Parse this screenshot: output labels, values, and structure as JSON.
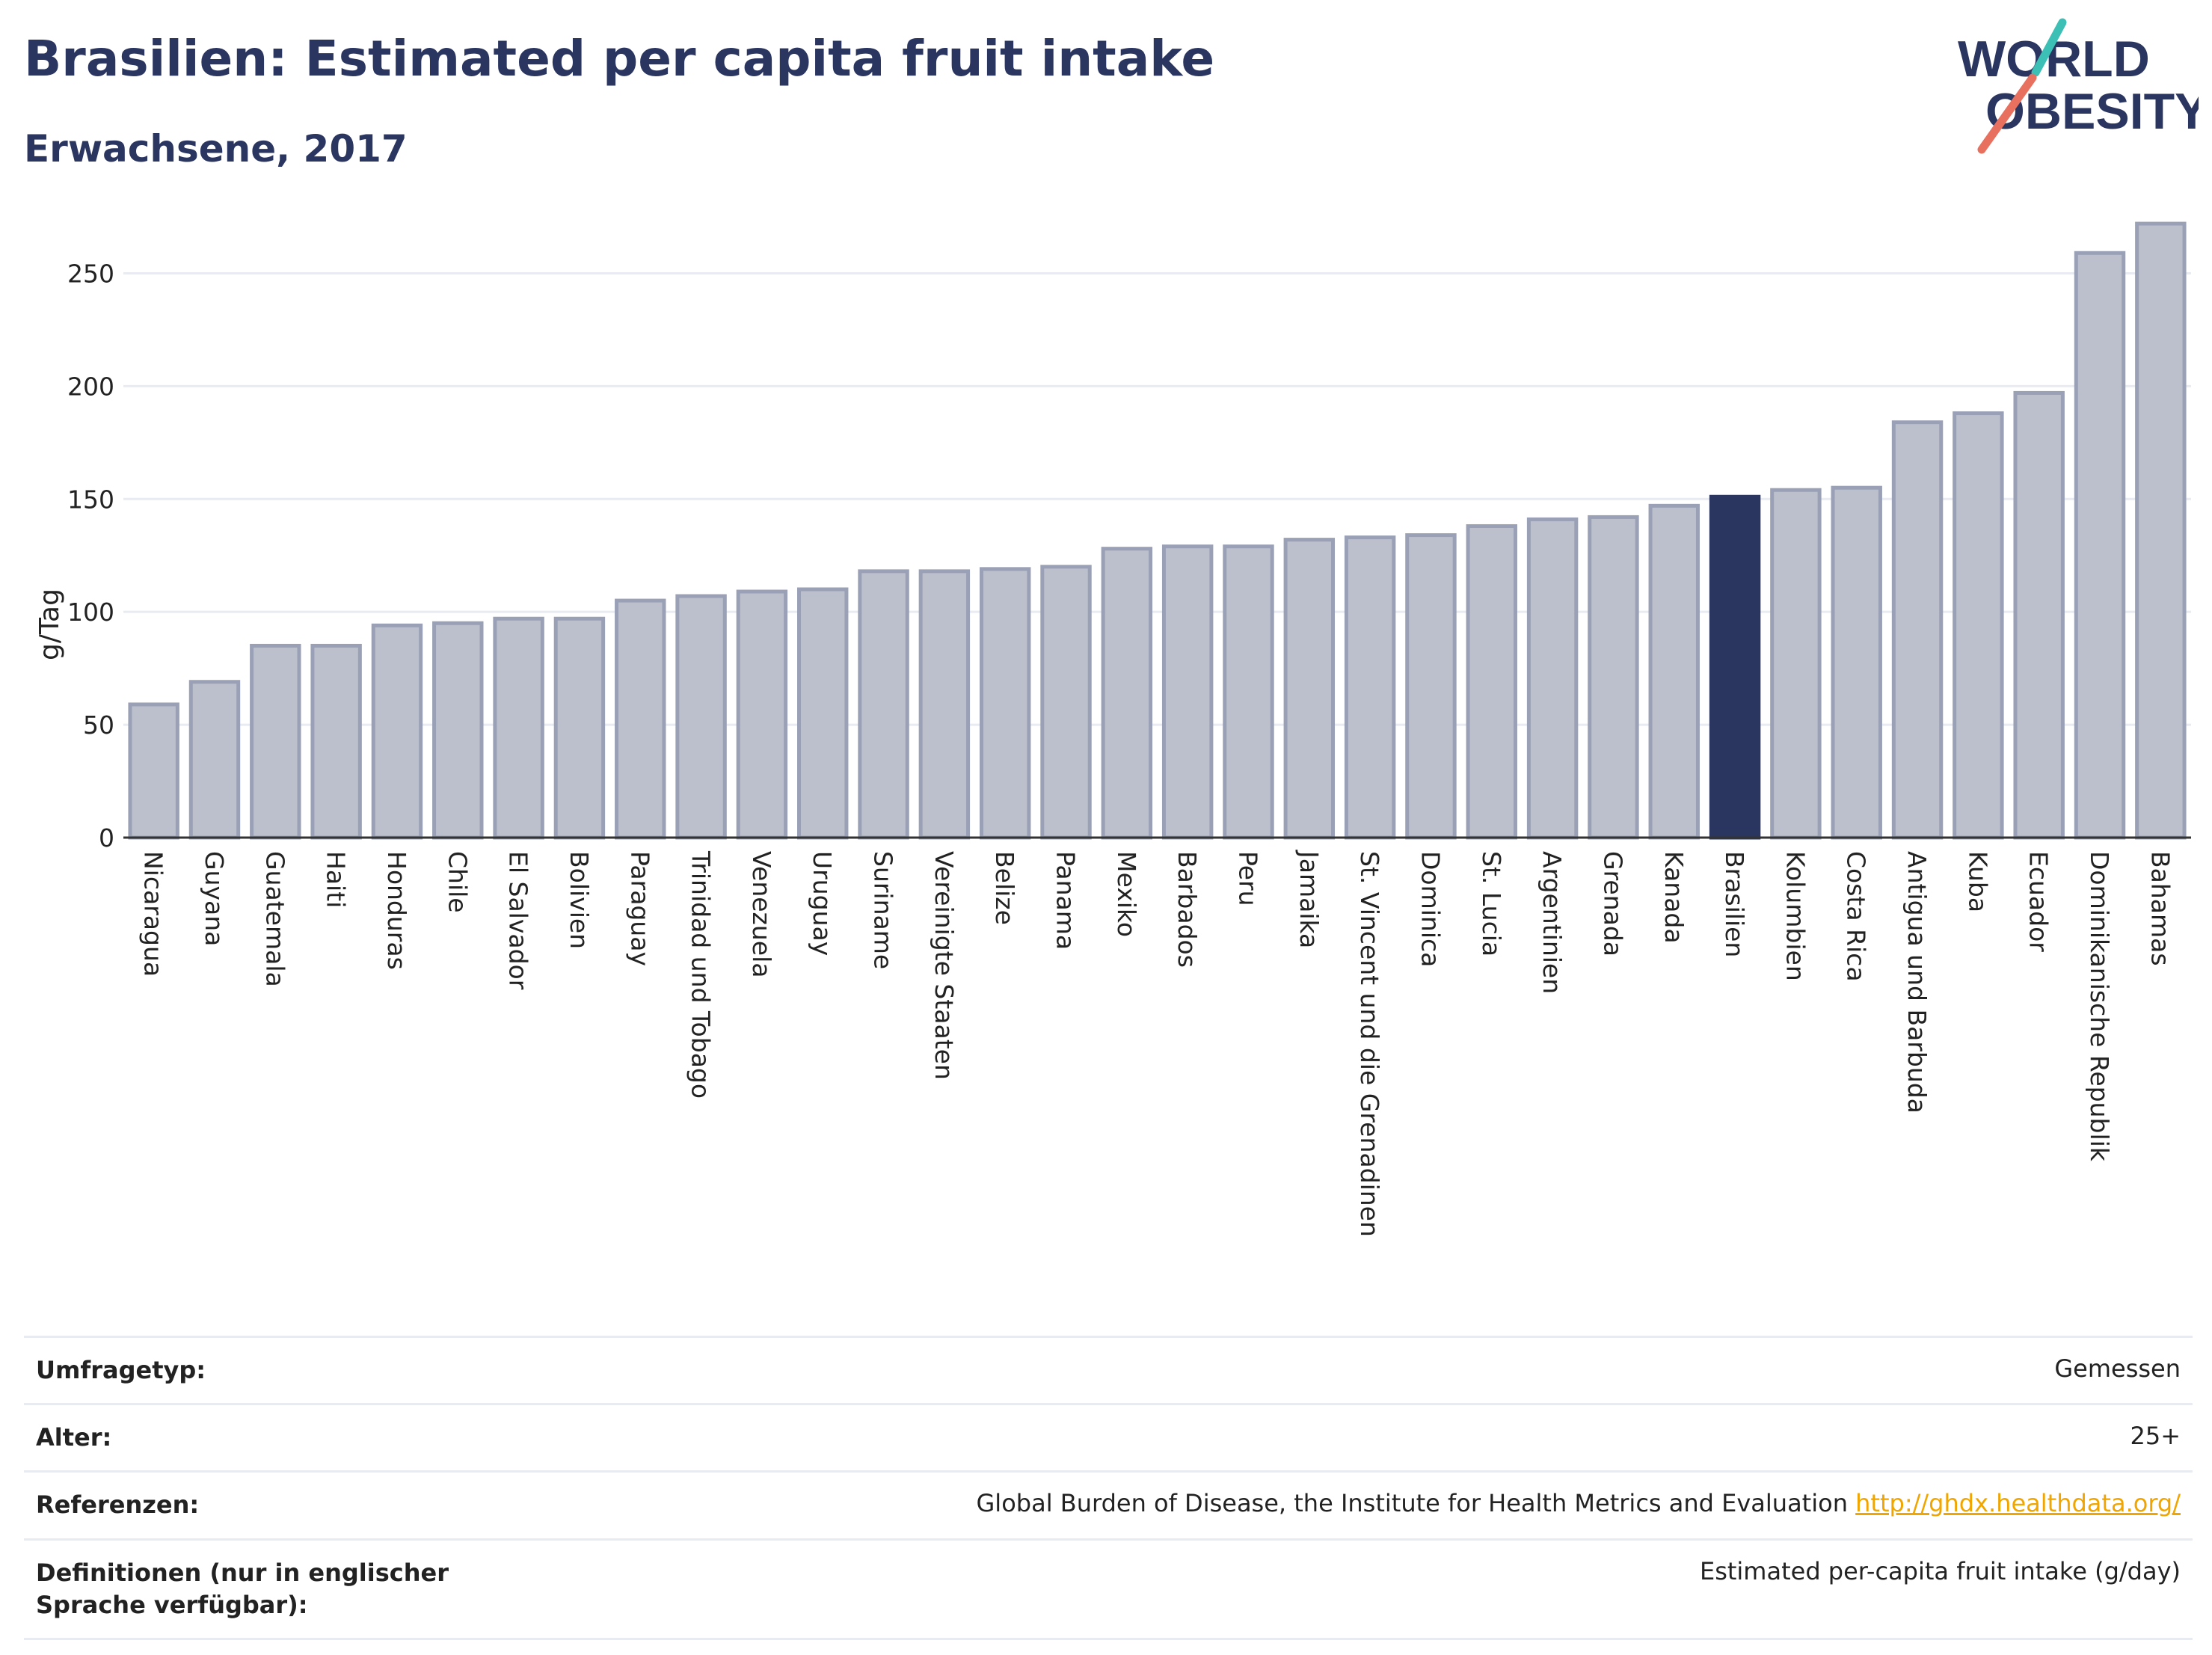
{
  "header": {
    "title": "Brasilien: Estimated per capita fruit intake",
    "subtitle": "Erwachsene, 2017"
  },
  "logo": {
    "line1": "WORLD",
    "line2": "OBESITY"
  },
  "colors": {
    "highlight_bar": "#2a3560",
    "default_bar_fill": "#bcc0cd",
    "default_bar_stroke": "#9aa0b6",
    "logo_teal": "#3cbfb4",
    "logo_coral": "#e8705f",
    "link": "#f0a500"
  },
  "chart_data": {
    "type": "bar",
    "title": "Brasilien: Estimated per capita fruit intake",
    "subtitle": "Erwachsene, 2017",
    "ylabel": "g/Tag",
    "xlabel": "",
    "ylim": [
      0,
      275
    ],
    "yticks": [
      0,
      50,
      100,
      150,
      200,
      250
    ],
    "grid": true,
    "highlight": "Brasilien",
    "categories": [
      "Nicaragua",
      "Guyana",
      "Guatemala",
      "Haiti",
      "Honduras",
      "Chile",
      "El Salvador",
      "Bolivien",
      "Paraguay",
      "Trinidad und Tobago",
      "Venezuela",
      "Uruguay",
      "Suriname",
      "Vereinigte Staaten",
      "Belize",
      "Panama",
      "Mexiko",
      "Barbados",
      "Peru",
      "Jamaika",
      "St. Vincent und die Grenadinen",
      "Dominica",
      "St. Lucia",
      "Argentinien",
      "Grenada",
      "Kanada",
      "Brasilien",
      "Kolumbien",
      "Costa Rica",
      "Antigua und Barbuda",
      "Kuba",
      "Ecuador",
      "Dominikanische Republik",
      "Bahamas"
    ],
    "values": [
      59,
      69,
      85,
      85,
      94,
      95,
      97,
      97,
      105,
      107,
      109,
      110,
      118,
      118,
      119,
      120,
      128,
      129,
      129,
      132,
      133,
      134,
      138,
      141,
      142,
      147,
      151,
      154,
      155,
      184,
      188,
      197,
      259,
      272
    ]
  },
  "info_table": [
    {
      "key": "Umfragetyp:",
      "value": "Gemessen"
    },
    {
      "key": "Alter:",
      "value": "25+"
    },
    {
      "key": "Referenzen:",
      "value": "Global Burden of Disease, the Institute for Health Metrics and Evaluation",
      "link": "http://ghdx.healthdata.org/"
    },
    {
      "key": "Definitionen (nur in englischer Sprache verfügbar):",
      "value": "Estimated per-capita fruit intake (g/day)"
    }
  ]
}
